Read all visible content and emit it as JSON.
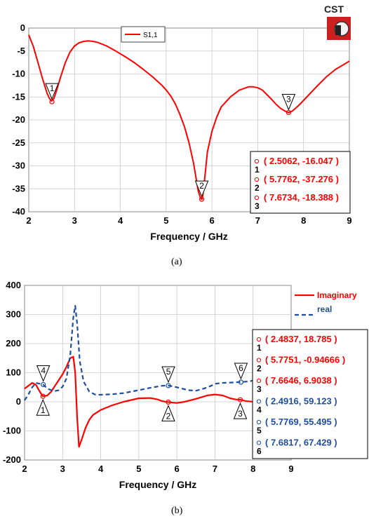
{
  "logo": {
    "text": "CST"
  },
  "captions": {
    "a": "(a)",
    "b": "(b)"
  },
  "chart_data": [
    {
      "type": "line",
      "xlabel": "Frequency / GHz",
      "ylabel": "",
      "xlim": [
        2,
        9
      ],
      "ylim": [
        -40,
        0
      ],
      "xticks": [
        2,
        3,
        4,
        5,
        6,
        7,
        8,
        9
      ],
      "yticks": [
        0,
        -5,
        -10,
        -15,
        -20,
        -25,
        -30,
        -35,
        -40
      ],
      "grid": true,
      "legend_position": "top-left",
      "series": [
        {
          "name": "S1,1",
          "color": "#ff0000",
          "style": "solid",
          "x": [
            2.0,
            2.1,
            2.2,
            2.3,
            2.4,
            2.45,
            2.5,
            2.55,
            2.6,
            2.7,
            2.8,
            2.9,
            3.0,
            3.1,
            3.2,
            3.3,
            3.4,
            3.5,
            3.7,
            3.9,
            4.1,
            4.3,
            4.5,
            4.7,
            4.9,
            5.0,
            5.1,
            5.2,
            5.3,
            5.4,
            5.5,
            5.6,
            5.65,
            5.7,
            5.75,
            5.78,
            5.8,
            5.85,
            5.9,
            6.0,
            6.1,
            6.2,
            6.4,
            6.6,
            6.8,
            6.9,
            7.0,
            7.1,
            7.2,
            7.3,
            7.4,
            7.5,
            7.6,
            7.67,
            7.75,
            7.9,
            8.1,
            8.3,
            8.5,
            8.7,
            8.9,
            9.0
          ],
          "y": [
            -1.5,
            -4.0,
            -7.5,
            -11.0,
            -14.2,
            -15.3,
            -15.9,
            -15.3,
            -13.8,
            -10.5,
            -7.5,
            -5.2,
            -3.9,
            -3.2,
            -2.9,
            -2.8,
            -2.9,
            -3.1,
            -3.9,
            -5.0,
            -6.2,
            -7.5,
            -9.0,
            -10.6,
            -12.4,
            -13.5,
            -14.8,
            -16.5,
            -18.8,
            -21.5,
            -25.0,
            -29.5,
            -32.5,
            -35.5,
            -37.0,
            -37.3,
            -36.5,
            -32.0,
            -27.0,
            -22.5,
            -19.5,
            -17.2,
            -15.0,
            -13.5,
            -12.8,
            -12.8,
            -13.0,
            -13.5,
            -14.5,
            -15.5,
            -16.6,
            -17.5,
            -18.1,
            -18.4,
            -18.1,
            -16.8,
            -14.7,
            -12.6,
            -10.6,
            -9.0,
            -7.8,
            -7.2
          ]
        }
      ],
      "markers": [
        {
          "id": "1",
          "x": 2.5062,
          "y": -16.047,
          "label": "( 2.5062, -16.047 )"
        },
        {
          "id": "2",
          "x": 5.7762,
          "y": -37.276,
          "label": "( 5.7762, -37.276 )"
        },
        {
          "id": "3",
          "x": 7.6734,
          "y": -18.388,
          "label": "( 7.6734, -18.388 )"
        }
      ]
    },
    {
      "type": "line",
      "xlabel": "Frequency / GHz",
      "ylabel": "",
      "xlim": [
        2,
        9
      ],
      "ylim": [
        -200,
        400
      ],
      "xticks": [
        2,
        3,
        4,
        5,
        6,
        7,
        8,
        9
      ],
      "yticks": [
        400,
        300,
        200,
        100,
        0,
        -100,
        -200
      ],
      "grid": true,
      "legend_position": "top-right",
      "series": [
        {
          "name": "Imaginary",
          "color": "#ff0000",
          "style": "solid",
          "x": [
            2.0,
            2.1,
            2.2,
            2.3,
            2.4,
            2.48,
            2.6,
            2.7,
            2.8,
            2.9,
            3.0,
            3.1,
            3.2,
            3.28,
            3.33,
            3.38,
            3.43,
            3.5,
            3.6,
            3.7,
            3.8,
            4.0,
            4.3,
            4.6,
            5.0,
            5.3,
            5.5,
            5.6,
            5.7,
            5.78,
            5.9,
            6.0,
            6.2,
            6.5,
            6.8,
            7.0,
            7.2,
            7.4,
            7.55,
            7.66,
            7.8,
            8.0
          ],
          "y": [
            45,
            55,
            65,
            58,
            35,
            19,
            22,
            35,
            55,
            75,
            95,
            120,
            150,
            155,
            100,
            -50,
            -155,
            -130,
            -90,
            -62,
            -45,
            -28,
            -12,
            0,
            12,
            13,
            8,
            3,
            0,
            -1,
            -3,
            -4,
            0,
            10,
            22,
            25,
            22,
            12,
            8,
            7,
            3,
            0
          ]
        },
        {
          "name": "real",
          "color": "#1f4e9e",
          "style": "dashed",
          "x": [
            2.0,
            2.1,
            2.2,
            2.3,
            2.4,
            2.5,
            2.6,
            2.7,
            2.8,
            2.9,
            3.0,
            3.1,
            3.2,
            3.28,
            3.33,
            3.38,
            3.45,
            3.55,
            3.7,
            3.85,
            4.0,
            4.3,
            4.6,
            5.0,
            5.3,
            5.6,
            5.78,
            6.0,
            6.3,
            6.5,
            6.7,
            6.9,
            7.0,
            7.2,
            7.4,
            7.68,
            7.9,
            8.0
          ],
          "y": [
            5,
            25,
            50,
            65,
            62,
            58,
            45,
            40,
            37,
            40,
            52,
            80,
            160,
            290,
            330,
            270,
            140,
            70,
            35,
            25,
            24,
            26,
            30,
            40,
            48,
            55,
            56,
            50,
            40,
            38,
            45,
            55,
            62,
            65,
            66,
            68,
            70,
            73
          ]
        }
      ],
      "markers": [
        {
          "id": "1",
          "series": "Imaginary",
          "x": 2.4837,
          "y": 18.785,
          "label": "( 2.4837, 18.785 )"
        },
        {
          "id": "2",
          "series": "Imaginary",
          "x": 5.7751,
          "y": -0.94666,
          "label": "( 5.7751, -0.94666 )"
        },
        {
          "id": "3",
          "series": "Imaginary",
          "x": 7.6646,
          "y": 6.9038,
          "label": "( 7.6646, 6.9038 )"
        },
        {
          "id": "4",
          "series": "real",
          "x": 2.4916,
          "y": 59.123,
          "label": "( 2.4916, 59.123 )"
        },
        {
          "id": "5",
          "series": "real",
          "x": 5.7769,
          "y": 55.495,
          "label": "( 5.7769, 55.495 )"
        },
        {
          "id": "6",
          "series": "real",
          "x": 7.6817,
          "y": 67.429,
          "label": "( 7.6817, 67.429 )"
        }
      ]
    }
  ]
}
